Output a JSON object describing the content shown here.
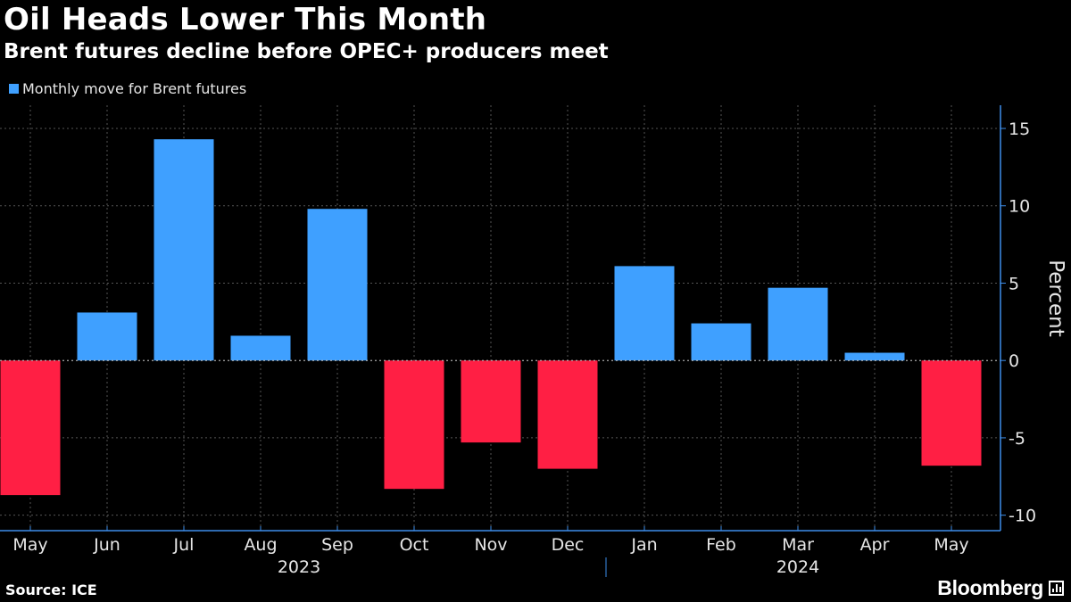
{
  "header": {
    "title": "Oil Heads Lower This Month",
    "subtitle": "Brent futures decline before OPEC+ producers meet"
  },
  "footer": {
    "source": "Source: ICE",
    "brand": "Bloomberg"
  },
  "colors": {
    "positive": "#3fa0ff",
    "negative": "#ff1f44",
    "grid": "#555555",
    "axis": "#3d8eea",
    "text": "#e6e6e6"
  },
  "chart_data": {
    "type": "bar",
    "title": "Oil Heads Lower This Month",
    "subtitle": "Brent futures decline before OPEC+ producers meet",
    "legend": [
      "Monthly move for Brent futures"
    ],
    "legend_position": "top-left",
    "categories": [
      "May",
      "Jun",
      "Jul",
      "Aug",
      "Sep",
      "Oct",
      "Nov",
      "Dec",
      "Jan",
      "Feb",
      "Mar",
      "Apr",
      "May"
    ],
    "year_labels": [
      {
        "label": "2023",
        "start": 0,
        "end": 7
      },
      {
        "label": "2024",
        "start": 8,
        "end": 12
      }
    ],
    "series": [
      {
        "name": "Monthly move for Brent futures",
        "values": [
          -8.7,
          3.1,
          14.3,
          1.6,
          9.8,
          -8.3,
          -5.3,
          -7.0,
          6.1,
          2.4,
          4.7,
          0.5,
          -6.8
        ]
      }
    ],
    "xlabel": "",
    "ylabel": "Percent",
    "ylim": [
      -11,
      16.5
    ],
    "yticks": [
      15,
      10,
      5,
      0,
      -5,
      -10
    ],
    "grid": true
  }
}
